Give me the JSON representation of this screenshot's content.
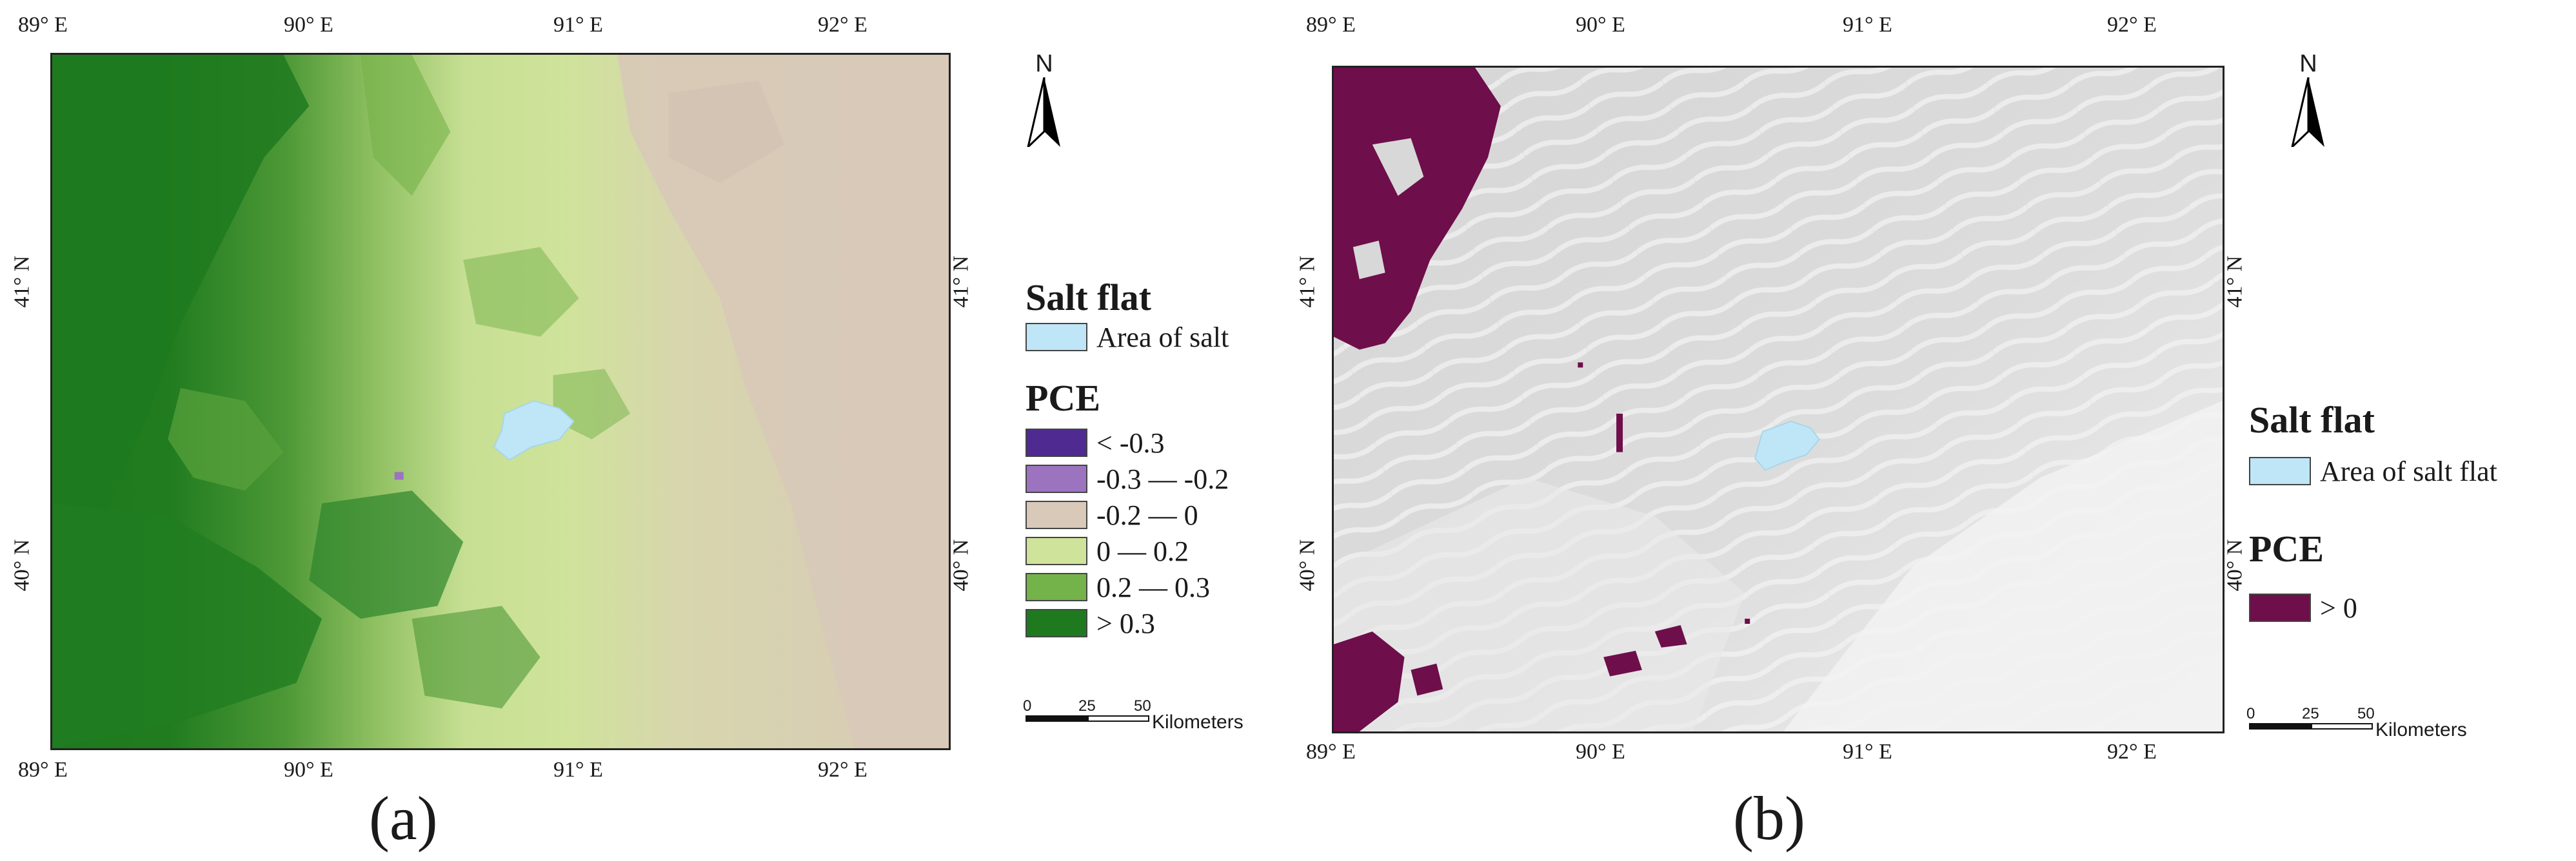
{
  "panel_a": {
    "top_ticks": [
      "89° E",
      "90° E",
      "91° E",
      "92° E"
    ],
    "bottom_ticks": [
      "89° E",
      "90° E",
      "91° E",
      "92° E"
    ],
    "left_ticks": [
      "41° N",
      "40° N"
    ],
    "right_ticks": [
      "41° N",
      "40° N"
    ],
    "north_label": "N",
    "salt_heading": "Salt flat",
    "salt_item": {
      "label": "Area of salt",
      "color": "#bfe6f7"
    },
    "pce_heading": "PCE",
    "pce_items": [
      {
        "label": "< -0.3",
        "color": "#4e2a91"
      },
      {
        "label": "-0.3 — -0.2",
        "color": "#9b73bf"
      },
      {
        "label": "-0.2 — 0",
        "color": "#d8c9b8"
      },
      {
        "label": "0 — 0.2",
        "color": "#cfe39a"
      },
      {
        "label": "0.2 — 0.3",
        "color": "#74b24a"
      },
      {
        "label": "> 0.3",
        "color": "#1f7a1f"
      }
    ],
    "scale": {
      "zero": "0",
      "mid": "25",
      "max": "50",
      "units": "Kilometers"
    },
    "caption": "(a)"
  },
  "panel_b": {
    "top_ticks": [
      "89° E",
      "90° E",
      "91° E",
      "92° E"
    ],
    "bottom_ticks": [
      "89° E",
      "90° E",
      "91° E",
      "92° E"
    ],
    "left_ticks": [
      "41° N",
      "40° N"
    ],
    "right_ticks": [
      "41° N",
      "40° N"
    ],
    "north_label": "N",
    "salt_heading": "Salt flat",
    "salt_item": {
      "label": "Area of salt flat",
      "color": "#bfe6f7"
    },
    "pce_heading": "PCE",
    "pce_items": [
      {
        "label": "> 0",
        "color": "#6e0e4a"
      }
    ],
    "scale": {
      "zero": "0",
      "mid": "25",
      "max": "50",
      "units": "Kilometers"
    },
    "caption": "(b)"
  }
}
